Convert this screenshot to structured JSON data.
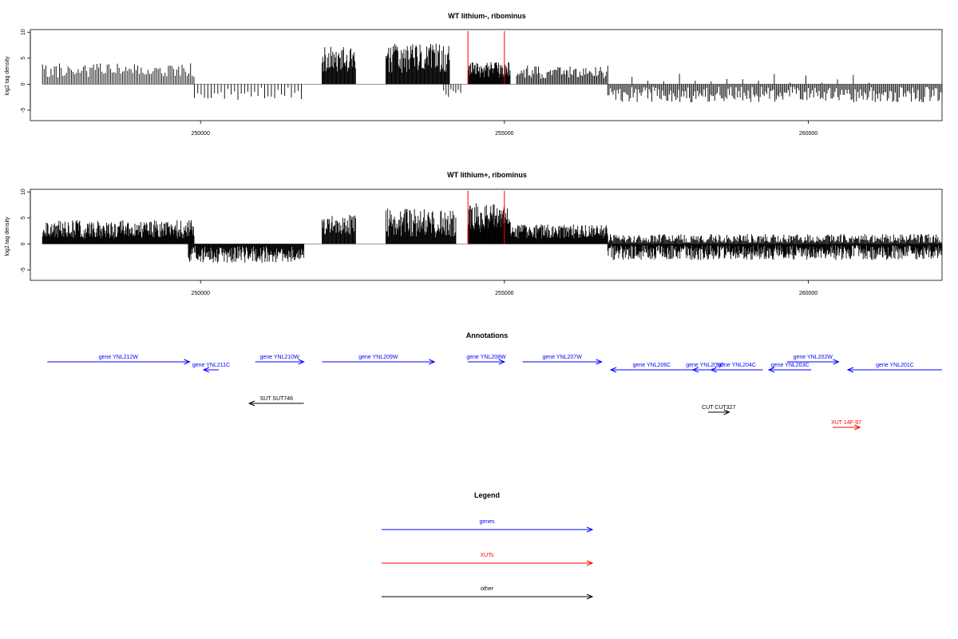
{
  "colors": {
    "gene": "#0000ff",
    "xut": "#ff0000",
    "other": "#000000",
    "highlight": "#ff0000",
    "bars": "#000000",
    "axis": "#000000"
  },
  "chart_data": [
    {
      "type": "bar",
      "title": "WT lithium-, ribominus",
      "ylabel": "log2 tag density",
      "xlim": [
        247200,
        262200
      ],
      "ylim": [
        -7,
        10.5
      ],
      "x_ticks": [
        250000,
        255000,
        260000
      ],
      "x_tick_labels": [
        "250000",
        "255000",
        "260000"
      ],
      "y_ticks": [
        -5,
        0,
        5,
        10
      ],
      "y_tick_labels": [
        "-5",
        "0",
        "5",
        "10"
      ],
      "highlight_x": [
        254400,
        255000
      ],
      "segments": [
        {
          "start": 247400,
          "end": 249900,
          "mean": 2.6,
          "amp": 1.4,
          "step": 28,
          "seed": 11
        },
        {
          "start": 249900,
          "end": 251700,
          "mean": -1.8,
          "amp": 1.2,
          "step": 55,
          "seed": 12
        },
        {
          "start": 252000,
          "end": 252550,
          "mean": 4.8,
          "amp": 2.4,
          "step": 11,
          "seed": 13
        },
        {
          "start": 253050,
          "end": 254100,
          "mean": 5.0,
          "amp": 2.8,
          "step": 11,
          "seed": 14
        },
        {
          "start": 254000,
          "end": 254300,
          "mean": -1.8,
          "amp": 1.0,
          "step": 40,
          "seed": 15
        },
        {
          "start": 254400,
          "end": 255100,
          "mean": 2.8,
          "amp": 1.5,
          "step": 9,
          "seed": 16
        },
        {
          "start": 255200,
          "end": 256700,
          "mean": 2.3,
          "amp": 1.3,
          "step": 20,
          "seed": 17
        },
        {
          "start": 256700,
          "end": 262200,
          "mean": -2.0,
          "amp": 1.5,
          "step": 22,
          "seed": 18
        },
        {
          "start": 257100,
          "end": 261000,
          "mean": 1.0,
          "amp": 1.2,
          "step": 260,
          "seed": 19
        }
      ]
    },
    {
      "type": "bar",
      "title": "WT lithium+, ribominus",
      "ylabel": "log2 tag density",
      "xlim": [
        247200,
        262200
      ],
      "ylim": [
        -7,
        10.5
      ],
      "x_ticks": [
        250000,
        255000,
        260000
      ],
      "x_tick_labels": [
        "250000",
        "255000",
        "260000"
      ],
      "y_ticks": [
        -5,
        0,
        5,
        10
      ],
      "y_tick_labels": [
        "-5",
        "0",
        "5",
        "10"
      ],
      "highlight_x": [
        254400,
        255000
      ],
      "segments": [
        {
          "start": 247400,
          "end": 249900,
          "mean": 2.8,
          "amp": 1.8,
          "step": 9,
          "seed": 21
        },
        {
          "start": 249800,
          "end": 251700,
          "mean": -2.0,
          "amp": 1.6,
          "step": 10,
          "seed": 22
        },
        {
          "start": 252000,
          "end": 252550,
          "mean": 3.8,
          "amp": 2.0,
          "step": 11,
          "seed": 23
        },
        {
          "start": 253050,
          "end": 254200,
          "mean": 4.0,
          "amp": 2.8,
          "step": 10,
          "seed": 24
        },
        {
          "start": 254400,
          "end": 255100,
          "mean": 5.0,
          "amp": 2.8,
          "step": 8,
          "seed": 25
        },
        {
          "start": 255100,
          "end": 256700,
          "mean": 2.4,
          "amp": 1.4,
          "step": 9,
          "seed": 26
        },
        {
          "start": 256700,
          "end": 262200,
          "mean": -1.6,
          "amp": 1.5,
          "step": 9,
          "seed": 27
        },
        {
          "start": 256700,
          "end": 262200,
          "mean": 1.0,
          "amp": 0.9,
          "step": 14,
          "seed": 28
        }
      ]
    }
  ],
  "annotations": {
    "title": "Annotations",
    "features": [
      {
        "label": "gene YNL212W",
        "kind": "gene",
        "start": 247480,
        "end": 249820,
        "strand": "+",
        "row": 0
      },
      {
        "label": "gene YNL211C",
        "kind": "gene",
        "start": 250050,
        "end": 250300,
        "strand": "-",
        "row": 1
      },
      {
        "label": "gene YNL210W",
        "kind": "gene",
        "start": 250900,
        "end": 251700,
        "strand": "+",
        "row": 0
      },
      {
        "label": "gene YNL209W",
        "kind": "gene",
        "start": 252000,
        "end": 253850,
        "strand": "+",
        "row": 0
      },
      {
        "label": "gene YNL208W",
        "kind": "gene",
        "start": 254400,
        "end": 255000,
        "strand": "+",
        "row": 0
      },
      {
        "label": "gene YNL207W",
        "kind": "gene",
        "start": 255300,
        "end": 256600,
        "strand": "+",
        "row": 0
      },
      {
        "label": "gene YNL206C",
        "kind": "gene",
        "start": 256750,
        "end": 258100,
        "strand": "-",
        "row": 1
      },
      {
        "label": "gene YNL205C",
        "kind": "gene",
        "start": 258100,
        "end": 258500,
        "strand": "-",
        "row": 1
      },
      {
        "label": "gene YNL204C",
        "kind": "gene",
        "start": 258400,
        "end": 259250,
        "strand": "-",
        "row": 1
      },
      {
        "label": "gene YNL202W",
        "kind": "gene",
        "start": 259650,
        "end": 260500,
        "strand": "+",
        "row": 0
      },
      {
        "label": "gene YNL203C",
        "kind": "gene",
        "start": 259350,
        "end": 260050,
        "strand": "-",
        "row": 1
      },
      {
        "label": "gene YNL201C",
        "kind": "gene",
        "start": 260650,
        "end": 262200,
        "strand": "-",
        "row": 1
      },
      {
        "label": "SUT SUT746",
        "kind": "other",
        "start": 250800,
        "end": 251700,
        "strand": "-",
        "row": 2
      },
      {
        "label": "CUT CUT327",
        "kind": "other",
        "start": 258350,
        "end": 258700,
        "strand": "+",
        "row": 3
      },
      {
        "label": "XUT 14F-97",
        "kind": "xut",
        "start": 260400,
        "end": 260850,
        "strand": "+",
        "row": 4
      }
    ]
  },
  "legend": {
    "title": "Legend",
    "items": [
      {
        "label": "genes",
        "kind": "gene"
      },
      {
        "label": "XUTs",
        "kind": "xut"
      },
      {
        "label": "other",
        "kind": "other"
      }
    ]
  }
}
